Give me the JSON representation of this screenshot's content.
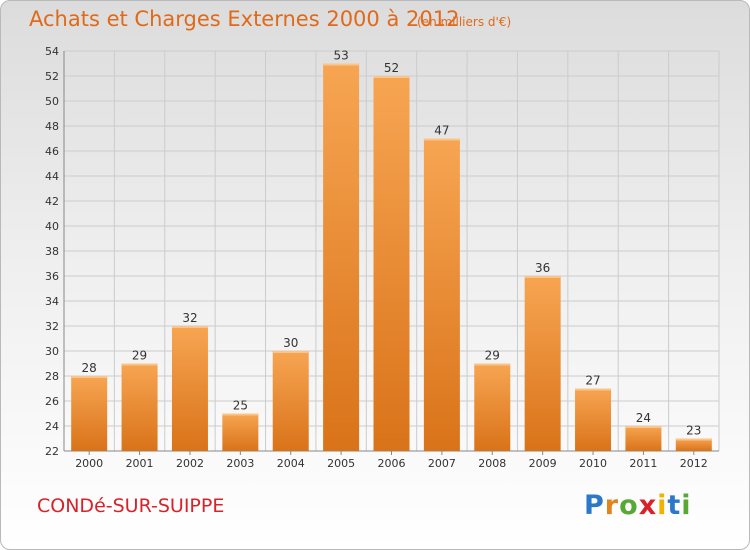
{
  "header": {
    "title": "Achats et Charges Externes 2000 à 2012",
    "subtitle": "(en milliers d'€)"
  },
  "footer": {
    "commune": "CONDé-SUR-SUIPPE",
    "logo_text": "Proxiti"
  },
  "colors": {
    "title": "#e06a1a",
    "commune": "#d8222a",
    "bar_top": "#f7a552",
    "bar_bottom": "#d97319",
    "grid": "#cccccc"
  },
  "chart_data": {
    "type": "bar",
    "title": "Achats et Charges Externes 2000 à 2012",
    "subtitle": "(en milliers d'€)",
    "categories": [
      "2000",
      "2001",
      "2002",
      "2003",
      "2004",
      "2005",
      "2006",
      "2007",
      "2008",
      "2009",
      "2010",
      "2011",
      "2012"
    ],
    "values": [
      28,
      29,
      32,
      25,
      30,
      53,
      52,
      47,
      29,
      36,
      27,
      24,
      23
    ],
    "ylim": [
      22,
      54
    ],
    "yticks": [
      22,
      24,
      26,
      28,
      30,
      32,
      34,
      36,
      38,
      40,
      42,
      44,
      46,
      48,
      50,
      52,
      54
    ],
    "grid": true,
    "legend": "none",
    "xlabel": "",
    "ylabel": ""
  }
}
